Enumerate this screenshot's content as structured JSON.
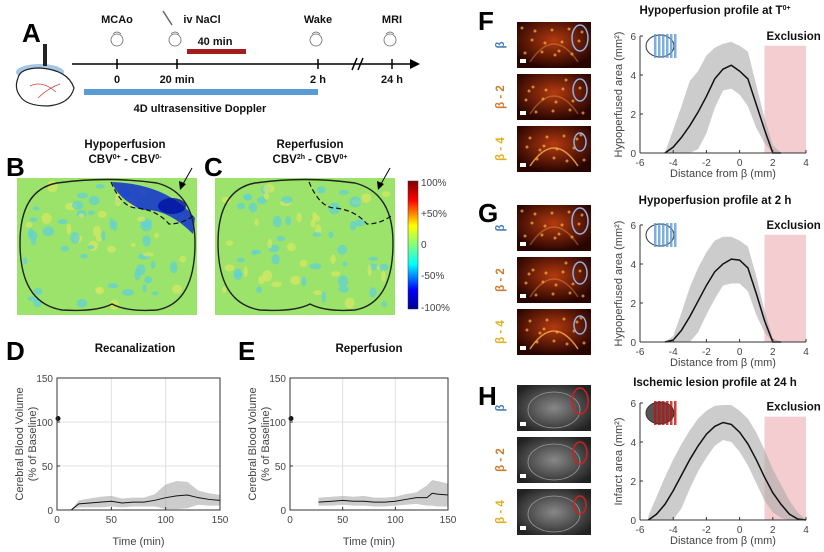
{
  "panel_letters": {
    "a": "A",
    "b": "B",
    "c": "C",
    "d": "D",
    "e": "E",
    "f": "F",
    "g": "G",
    "h": "H"
  },
  "timeline": {
    "events": [
      {
        "label": "MCAo",
        "color": "#d07a2e"
      },
      {
        "label": "iv NaCl",
        "color": "#b01c1c"
      },
      {
        "label": "Wake",
        "color": "#111111"
      },
      {
        "label": "MRI",
        "color": "#111111"
      }
    ],
    "ticks": [
      "0",
      "20 min",
      "2 h",
      "24 h"
    ],
    "infusion_label": "40 min",
    "infusion_color": "#a61b1b",
    "doppler_label": "4D ultrasensitive Doppler",
    "doppler_color": "#5b9bd5",
    "icons": [
      "mouse-icon",
      "syringe-icon",
      "ultrasound-probe-icon",
      "rat-brain-icon"
    ]
  },
  "maps": {
    "b": {
      "title": "Hypoperfusion",
      "formula_a": "CBV",
      "sup_a": "0+",
      "formula_sep": " - CBV",
      "sup_b": "0-"
    },
    "c": {
      "title": "Reperfusion",
      "formula_a": "CBV",
      "sup_a": "2h",
      "formula_sep": " - CBV",
      "sup_b": "0+"
    },
    "colorbar": {
      "labels": [
        "100%",
        "+50%",
        "0",
        "-50%",
        "-100%"
      ],
      "colormap": "jet"
    }
  },
  "chart_data": [
    {
      "id": "D",
      "type": "line",
      "title": "Recanalization",
      "xlabel": "Time (min)",
      "ylabel": "Cerebral Blood Volume",
      "ylabel2": "(% of Baseline)",
      "xlim": [
        0,
        150
      ],
      "ylim": [
        0,
        150
      ],
      "xticks": [
        0,
        50,
        100,
        150
      ],
      "yticks": [
        0,
        50,
        100,
        150
      ],
      "grid": true,
      "baseline_point": {
        "x": 0,
        "y": 104
      },
      "x": [
        13,
        20,
        30,
        40,
        50,
        60,
        70,
        80,
        90,
        100,
        110,
        120,
        130,
        140,
        150
      ],
      "mean": [
        0,
        7,
        8,
        9,
        10,
        8,
        9,
        9,
        11,
        14,
        16,
        17,
        14,
        12,
        11
      ],
      "lower": [
        0,
        3,
        3,
        3,
        4,
        3,
        4,
        4,
        4,
        1,
        1,
        2,
        6,
        5,
        5
      ],
      "upper": [
        0,
        11,
        13,
        15,
        16,
        13,
        14,
        14,
        18,
        29,
        33,
        32,
        22,
        19,
        17
      ]
    },
    {
      "id": "E",
      "type": "line",
      "title": "Reperfusion",
      "xlabel": "Time (min)",
      "ylabel": "Cerebral Blood Volume",
      "ylabel2": "(% of Baseline)",
      "xlim": [
        0,
        150
      ],
      "ylim": [
        0,
        150
      ],
      "xticks": [
        0,
        50,
        100,
        150
      ],
      "yticks": [
        0,
        50,
        100,
        150
      ],
      "grid": true,
      "baseline_point": {
        "x": 0,
        "y": 104
      },
      "x": [
        27,
        40,
        50,
        60,
        70,
        80,
        90,
        100,
        110,
        120,
        130,
        135,
        140,
        150
      ],
      "mean": [
        9,
        10,
        11,
        10,
        10,
        9,
        9,
        10,
        12,
        14,
        14,
        19,
        18,
        17
      ],
      "lower": [
        5,
        5,
        6,
        5,
        5,
        4,
        4,
        5,
        6,
        7,
        5,
        5,
        4,
        4
      ],
      "upper": [
        14,
        15,
        16,
        15,
        16,
        14,
        14,
        15,
        18,
        20,
        28,
        34,
        33,
        30
      ]
    },
    {
      "id": "F",
      "type": "area",
      "title": "Hypoperfusion profile at T",
      "title_sup": "0+",
      "xlabel": "Distance from β (mm)",
      "ylabel": "Hypoperfused area (mm²)",
      "xlim": [
        -6,
        4
      ],
      "ylim": [
        0,
        6
      ],
      "xticks": [
        -6,
        -4,
        -2,
        0,
        2,
        4
      ],
      "yticks": [
        0,
        2,
        4,
        6
      ],
      "exclusion": {
        "label": "Exclusion",
        "from": 1.5,
        "to": 4,
        "top": 5.5,
        "color": "#f2c4c8"
      },
      "x": [
        -4.5,
        -4,
        -3.5,
        -3,
        -2.5,
        -2,
        -1.5,
        -1,
        -0.5,
        0,
        0.5,
        1,
        1.5,
        2,
        2.5
      ],
      "mean": [
        0,
        0.3,
        0.8,
        1.4,
        2.1,
        2.9,
        3.8,
        4.3,
        4.5,
        4.2,
        3.8,
        2.5,
        1.2,
        0,
        0
      ],
      "upper": [
        0,
        1.2,
        2.4,
        3.7,
        4.2,
        5.0,
        5.4,
        5.6,
        5.7,
        5.5,
        5.2,
        3.5,
        1.8,
        0.4,
        0
      ],
      "lower": [
        0,
        0,
        0,
        0,
        0.2,
        1.0,
        2.3,
        3.2,
        3.3,
        3.0,
        2.4,
        1.3,
        0.5,
        0,
        0
      ],
      "slices": [
        "β",
        "β - 2",
        "β - 4"
      ],
      "slice_colors": [
        "#4a7fb5",
        "#d07a2e",
        "#e0b020"
      ]
    },
    {
      "id": "G",
      "type": "area",
      "title": "Hypoperfusion profile at 2 h",
      "title_sup": "",
      "xlabel": "Distance from β (mm)",
      "ylabel": "Hypoperfused area (mm²)",
      "xlim": [
        -6,
        4
      ],
      "ylim": [
        0,
        6
      ],
      "xticks": [
        -6,
        -4,
        -2,
        0,
        2,
        4
      ],
      "yticks": [
        0,
        2,
        4,
        6
      ],
      "exclusion": {
        "label": "Exclusion",
        "from": 1.5,
        "to": 4,
        "top": 5.5,
        "color": "#f2c4c8"
      },
      "x": [
        -4.5,
        -4,
        -3.5,
        -3,
        -2.5,
        -2,
        -1.5,
        -1,
        -0.5,
        0,
        0.5,
        1,
        1.5,
        2,
        2.5
      ],
      "mean": [
        0,
        0.1,
        0.6,
        1.3,
        2.1,
        2.9,
        3.6,
        4.0,
        4.25,
        4.2,
        3.8,
        2.5,
        1.1,
        0,
        0
      ],
      "upper": [
        0,
        0.3,
        1.5,
        2.8,
        3.8,
        4.6,
        5.2,
        5.4,
        5.4,
        5.2,
        4.9,
        3.4,
        1.6,
        0.2,
        0
      ],
      "lower": [
        0,
        0,
        0,
        0,
        0.5,
        1.4,
        2.2,
        2.9,
        3.0,
        3.0,
        2.6,
        1.4,
        0.5,
        0,
        0
      ],
      "slices": [
        "β",
        "β - 2",
        "β - 4"
      ],
      "slice_colors": [
        "#4a7fb5",
        "#d07a2e",
        "#e0b020"
      ]
    },
    {
      "id": "H",
      "type": "area",
      "title": "Ischemic lesion profile at 24 h",
      "title_sup": "",
      "xlabel": "Distance from β (mm)",
      "ylabel": "Infarct area (mm²)",
      "xlim": [
        -6,
        4
      ],
      "ylim": [
        0,
        6
      ],
      "xticks": [
        -6,
        -4,
        -2,
        0,
        2,
        4
      ],
      "yticks": [
        0,
        2,
        4,
        6
      ],
      "exclusion": {
        "label": "Exclusion",
        "from": 1.5,
        "to": 4,
        "top": 5.3,
        "color": "#f2c4c8"
      },
      "x": [
        -5.5,
        -5,
        -4.5,
        -4,
        -3.5,
        -3,
        -2.5,
        -2,
        -1.5,
        -1,
        -0.5,
        0,
        0.5,
        1,
        1.5,
        2,
        2.5,
        3,
        3.5,
        4
      ],
      "mean": [
        0,
        0.3,
        0.8,
        1.5,
        2.3,
        3.1,
        3.8,
        4.4,
        4.8,
        5.0,
        4.9,
        4.5,
        3.9,
        3.1,
        2.2,
        1.4,
        0.8,
        0.3,
        0.05,
        0
      ],
      "upper": [
        0.2,
        1.2,
        2.2,
        3.1,
        3.9,
        4.6,
        5.2,
        5.6,
        5.85,
        5.9,
        5.9,
        5.6,
        5.2,
        4.5,
        3.6,
        2.6,
        1.8,
        1.0,
        0.4,
        0
      ],
      "lower": [
        0,
        0,
        0,
        0,
        0.6,
        1.6,
        2.5,
        3.2,
        3.8,
        4.1,
        4.0,
        3.5,
        2.8,
        1.9,
        1.0,
        0.4,
        0.1,
        0,
        0,
        0
      ],
      "slices": [
        "β",
        "β - 2",
        "β - 4"
      ],
      "slice_colors": [
        "#4a7fb5",
        "#d07a2e",
        "#e0b020"
      ]
    }
  ]
}
